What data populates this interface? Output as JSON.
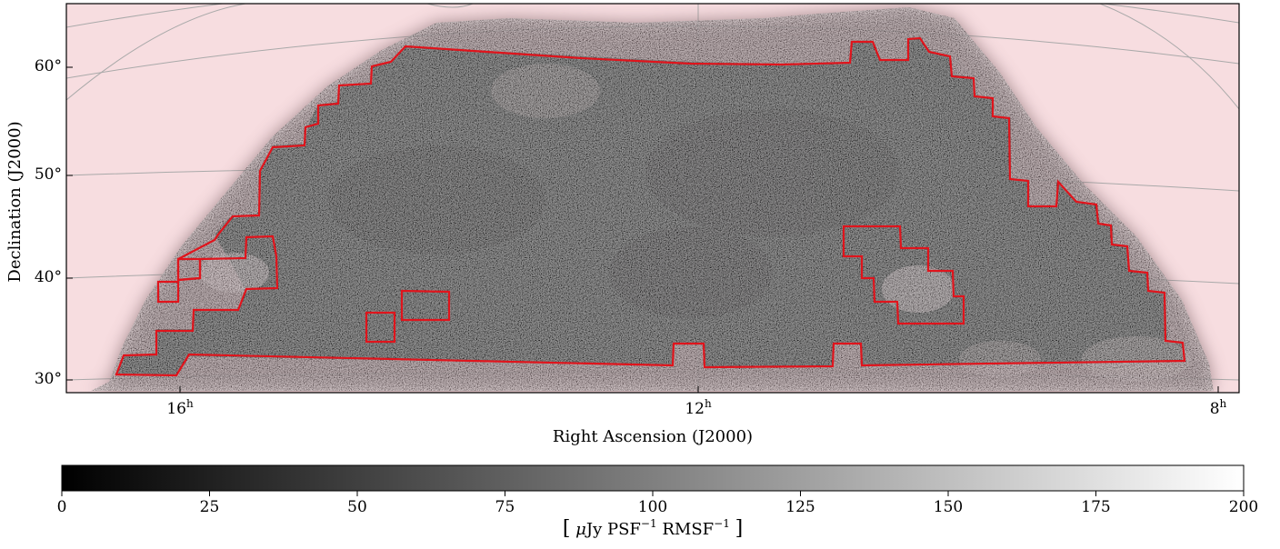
{
  "map": {
    "xlabel": "Right Ascension (J2000)",
    "ylabel": "Declination (J2000)",
    "ra_ticks": [
      {
        "hour": "16",
        "sup": "h"
      },
      {
        "hour": "12",
        "sup": "h"
      },
      {
        "hour": "8",
        "sup": "h"
      }
    ],
    "dec_ticks": [
      "30°",
      "40°",
      "50°",
      "60°"
    ],
    "colors": {
      "background": "#f7dde0",
      "survey": "#4a4a4a",
      "footprint": "#e0141c",
      "grid": "#a9a9a9"
    }
  },
  "colorbar": {
    "ticks": [
      "0",
      "25",
      "50",
      "75",
      "100",
      "125",
      "150",
      "175",
      "200"
    ],
    "range": [
      0,
      200
    ],
    "colormap": "gray",
    "unit": {
      "open": "[",
      "mu": "μ",
      "jy": "Jy PSF",
      "exp1": "−1",
      "rmsf": " RMSF",
      "exp2": "−1",
      "close": "]"
    }
  }
}
